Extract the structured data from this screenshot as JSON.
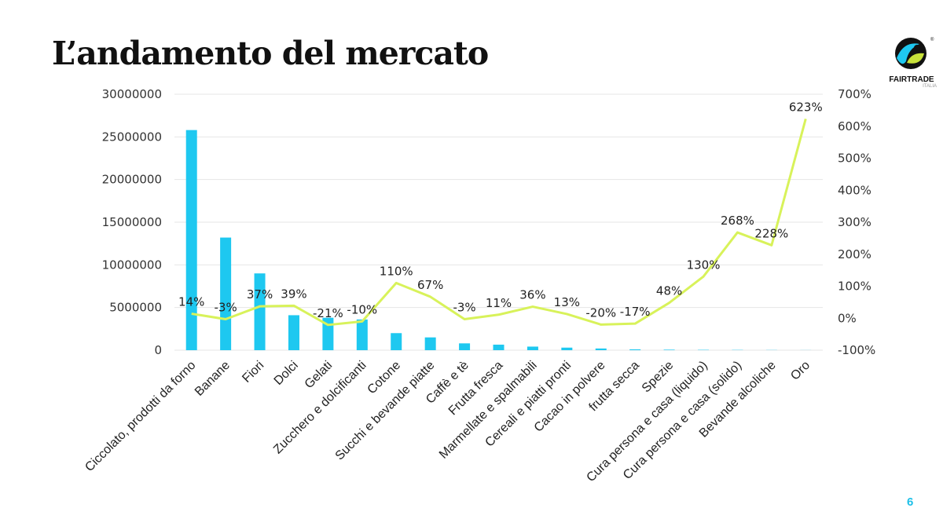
{
  "slide": {
    "title": "L’andamento del mercato",
    "page_number": "6",
    "logo_text": "FAIRTRADE",
    "logo_subtext": "ITALIA",
    "logo_icon": "fairtrade-logo-icon"
  },
  "colors": {
    "bar": "#1ec8f0",
    "line": "#d8f25a",
    "grid": "#e6e6e6",
    "page_number": "#1ec0e8"
  },
  "chart_data": {
    "type": "bar+line",
    "title": "",
    "categories": [
      "Ciccolato, prodotti da forno",
      "Banane",
      "Fiori",
      "Dolci",
      "Gelati",
      "Zucchero e dolcificanti",
      "Cotone",
      "Succhi e bevande piatte",
      "Caffè e tè",
      "Frutta fresca",
      "Marmellate e spalmabili",
      "Cereali e piatti pronti",
      "Cacao in polvere",
      "frutta secca",
      "Spezie",
      "Cura persona e casa (liquido)",
      "Cura persona e casa (solido)",
      "Bevande alcoliche",
      "Oro"
    ],
    "bars": {
      "axis": "left",
      "values": [
        25800000,
        13200000,
        9000000,
        4100000,
        3800000,
        3600000,
        2000000,
        1500000,
        800000,
        650000,
        420000,
        300000,
        200000,
        100000,
        60000,
        40000,
        30000,
        20000,
        10000
      ]
    },
    "line": {
      "axis": "right",
      "values": [
        14,
        -3,
        37,
        39,
        -21,
        -10,
        110,
        67,
        -3,
        11,
        36,
        13,
        -20,
        -17,
        48,
        130,
        268,
        228,
        623
      ],
      "labels": [
        "14%",
        "-3%",
        "37%",
        "39%",
        "-21%",
        "-10%",
        "110%",
        "67%",
        "-3%",
        "11%",
        "36%",
        "13%",
        "-20%",
        "-17%",
        "48%",
        "130%",
        "268%",
        "228%",
        "623%"
      ]
    },
    "y_left": {
      "min": 0,
      "max": 30000000,
      "ticks": [
        "0",
        "5000000",
        "10000000",
        "15000000",
        "20000000",
        "25000000",
        "30000000"
      ]
    },
    "y_right": {
      "min": -100,
      "max": 700,
      "ticks": [
        "-100%",
        "0%",
        "100%",
        "200%",
        "300%",
        "400%",
        "500%",
        "600%",
        "700%"
      ]
    },
    "grid": true,
    "legend": "none"
  }
}
